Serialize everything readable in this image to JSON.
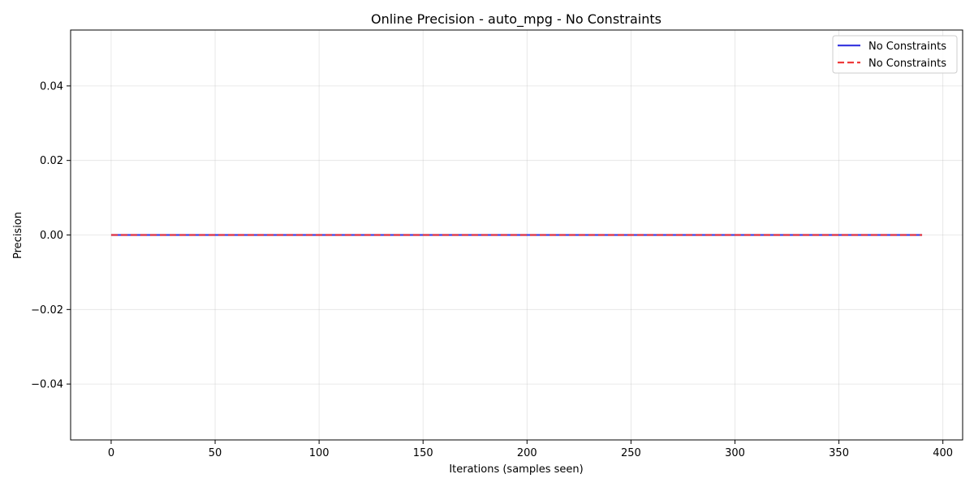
{
  "chart_data": {
    "type": "line",
    "title": "Online Precision - auto_mpg - No Constraints",
    "xlabel": "Iterations (samples seen)",
    "ylabel": "Precision",
    "xlim": [
      -19.5,
      409.5
    ],
    "ylim": [
      -0.055,
      0.055
    ],
    "xticks": [
      0,
      50,
      100,
      150,
      200,
      250,
      300,
      350,
      400
    ],
    "xtick_labels": [
      "0",
      "50",
      "100",
      "150",
      "200",
      "250",
      "300",
      "350",
      "400"
    ],
    "yticks": [
      -0.04,
      -0.02,
      0.0,
      0.02,
      0.04
    ],
    "ytick_labels": [
      "−0.04",
      "−0.02",
      "0.00",
      "0.02",
      "0.04"
    ],
    "grid": true,
    "legend_position": "top-right",
    "series": [
      {
        "name": "No Constraints",
        "color": "#3a3ae0",
        "style": "solid",
        "x": [
          0,
          390
        ],
        "y": [
          0.0,
          0.0
        ]
      },
      {
        "name": "No Constraints",
        "color": "#ee3a3a",
        "style": "dashed",
        "x": [
          0,
          390
        ],
        "y": [
          0.0,
          0.0
        ]
      }
    ]
  }
}
